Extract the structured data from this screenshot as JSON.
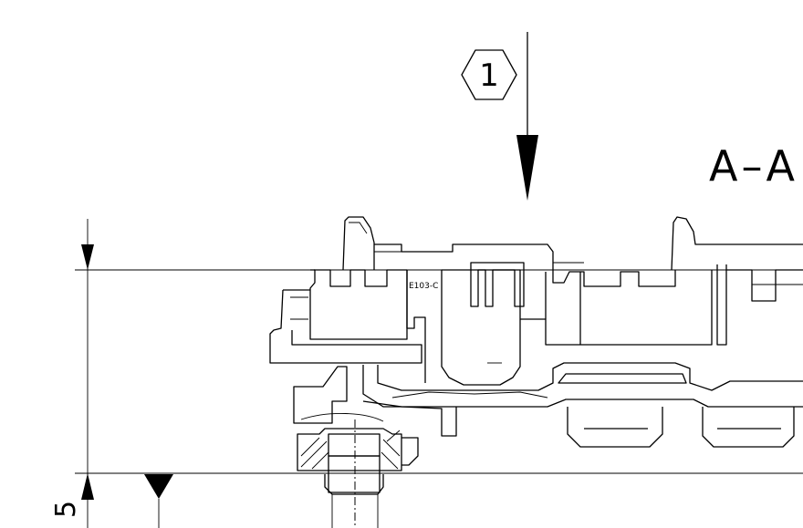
{
  "callout": {
    "number": "1"
  },
  "section": {
    "label": "A–A"
  },
  "dimension": {
    "partial_value": "5"
  },
  "marking": {
    "text": "E103-C"
  }
}
